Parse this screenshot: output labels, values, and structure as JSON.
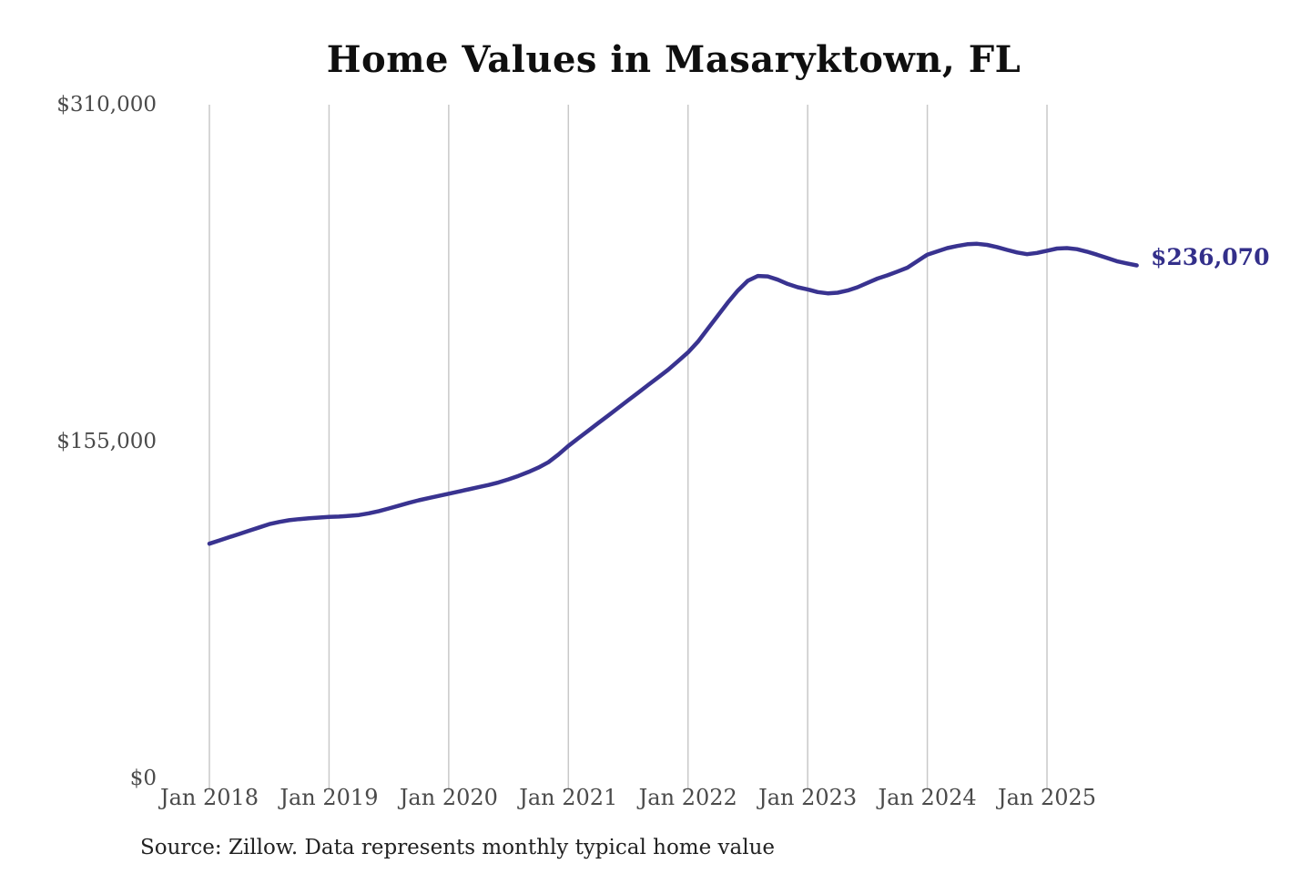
{
  "title": "Home Values in Masaryktown, FL",
  "source_note": "Source: Zillow. Data represents monthly typical home value",
  "colors": {
    "line": "#393390",
    "end_label": "#332f8a",
    "grid": "#c9c9c9",
    "axis_text": "#4a4a4a",
    "title_text": "#0f0f0f",
    "source_text": "#222222",
    "background": "#ffffff"
  },
  "chart_data": {
    "type": "line",
    "title": "Home Values in Masaryktown, FL",
    "xlabel": "",
    "ylabel": "",
    "x_start": "2018-01",
    "x_end": "2025-10",
    "x_interval": "monthly",
    "x_tick_labels": [
      "Jan 2018",
      "Jan 2019",
      "Jan 2020",
      "Jan 2021",
      "Jan 2022",
      "Jan 2023",
      "Jan 2024",
      "Jan 2025"
    ],
    "y_ticks": [
      0,
      155000,
      310000
    ],
    "y_tick_labels": [
      "$0",
      "$155,000",
      "$310,000"
    ],
    "ylim": [
      0,
      310000
    ],
    "grid": "vertical-only",
    "legend": false,
    "last_value_label": "$236,070",
    "last_value": 236070,
    "series": [
      {
        "name": "Typical home value (USD)",
        "values": [
          108000,
          109500,
          111000,
          112500,
          114000,
          115500,
          117000,
          118000,
          118800,
          119300,
          119700,
          120000,
          120300,
          120500,
          120800,
          121200,
          122000,
          123000,
          124200,
          125500,
          126800,
          128000,
          129000,
          130000,
          131000,
          132000,
          133000,
          134000,
          135000,
          136200,
          137600,
          139200,
          141000,
          143000,
          145500,
          149000,
          153000,
          156500,
          160000,
          163500,
          167000,
          170500,
          174000,
          177500,
          181000,
          184500,
          188000,
          192000,
          196000,
          201000,
          207000,
          213000,
          219000,
          224500,
          229000,
          231200,
          231000,
          229500,
          227500,
          226000,
          225000,
          223800,
          223200,
          223500,
          224500,
          226000,
          228000,
          230000,
          231500,
          233200,
          235000,
          238000,
          241000,
          242500,
          244000,
          245000,
          245800,
          246000,
          245500,
          244500,
          243200,
          242000,
          241200,
          241800,
          242800,
          243800,
          244000,
          243500,
          242400,
          241000,
          239500,
          238000,
          237000,
          236070
        ]
      }
    ]
  }
}
